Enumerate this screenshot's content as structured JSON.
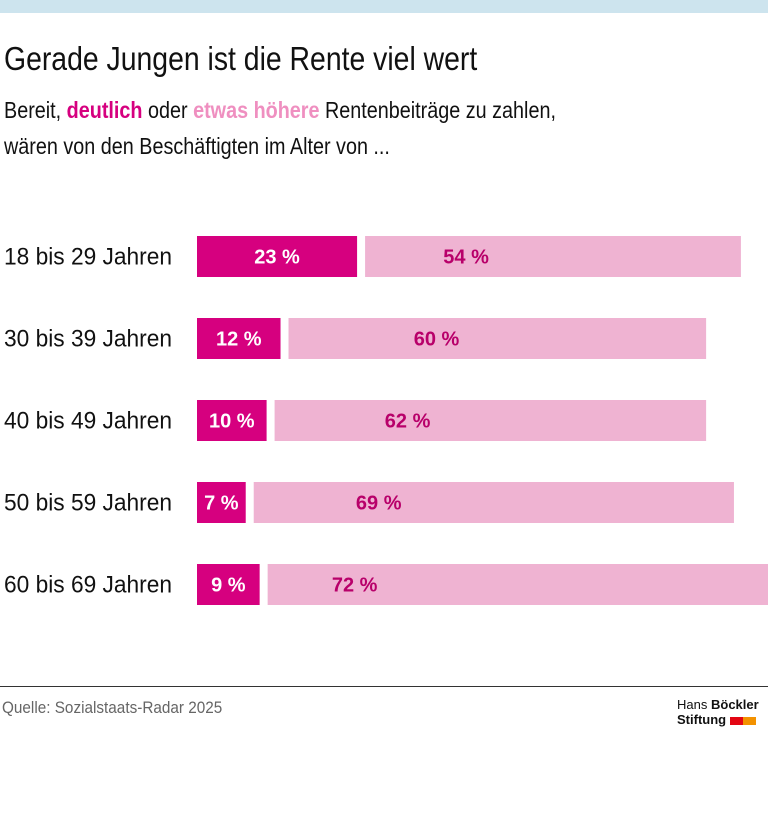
{
  "header": {
    "title": "Gerade Jungen ist die Rente viel wert",
    "subtitle_1a": "Bereit,",
    "subtitle_1b": "deutlich",
    "subtitle_1c": "oder",
    "subtitle_1d": "etwas höhere",
    "subtitle_1e": "Rentenbeiträge zu zahlen,",
    "subtitle_2": "wären von den Beschäftigten im Alter von ..."
  },
  "chart_data": {
    "type": "bar",
    "orientation": "horizontal",
    "stacked": true,
    "categories": [
      "18 bis 29 Jahren",
      "30 bis 39 Jahren",
      "40 bis 49 Jahren",
      "50 bis 59 Jahren",
      "60 bis 69 Jahren"
    ],
    "series": [
      {
        "name": "deutlich",
        "values": [
          23,
          12,
          10,
          7,
          9
        ],
        "labels": [
          "23 %",
          "12 %",
          "10 %",
          "7 %",
          "9 %"
        ],
        "color": "#d6007f"
      },
      {
        "name": "etwas höhere",
        "values": [
          54,
          60,
          62,
          69,
          72
        ],
        "labels": [
          "54 %",
          "60 %",
          "62 %",
          "69 %",
          "72 %"
        ],
        "color": "#efb3d2"
      }
    ],
    "unit": "%",
    "grid": false
  },
  "footer": {
    "source": "Quelle: Sozialstaats-Radar 2025",
    "logo_line1a": "Hans",
    "logo_line1b": "Böckler",
    "logo_line2": "Stiftung",
    "logo_colors": [
      "#e30613",
      "#f39200"
    ]
  }
}
